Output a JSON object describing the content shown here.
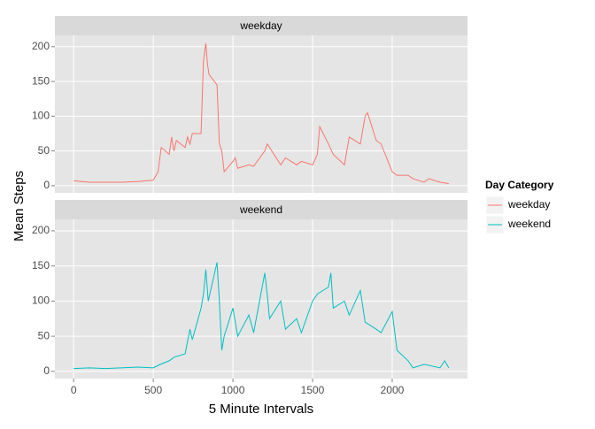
{
  "chart_data": {
    "type": "line",
    "x_label": "5 Minute Intervals",
    "y_label": "Mean Steps",
    "legend_title": "Day Category",
    "legend_position": "right",
    "facet": true,
    "grid": true,
    "xlim": [
      -117.75,
      2472.75
    ],
    "xticks": [
      0,
      500,
      1000,
      1500,
      2000
    ],
    "ylim": [
      -10.3,
      216.3
    ],
    "yticks": [
      0,
      50,
      100,
      150,
      200
    ],
    "series": [
      {
        "name": "weekday",
        "color": "#F8766D",
        "x": [
          0,
          100,
          200,
          300,
          400,
          500,
          530,
          550,
          600,
          615,
          630,
          645,
          700,
          715,
          730,
          745,
          800,
          815,
          830,
          840,
          850,
          900,
          915,
          930,
          945,
          1000,
          1015,
          1030,
          1100,
          1130,
          1200,
          1215,
          1230,
          1300,
          1330,
          1400,
          1430,
          1500,
          1530,
          1545,
          1600,
          1630,
          1700,
          1730,
          1800,
          1830,
          1845,
          1900,
          1930,
          2000,
          2030,
          2100,
          2130,
          2200,
          2230,
          2300,
          2355
        ],
        "values": [
          7,
          5,
          5,
          5,
          6,
          8,
          20,
          55,
          45,
          70,
          50,
          65,
          55,
          70,
          60,
          75,
          75,
          180,
          205,
          175,
          160,
          145,
          60,
          50,
          20,
          35,
          40,
          25,
          30,
          28,
          50,
          60,
          55,
          30,
          40,
          30,
          35,
          30,
          45,
          85,
          60,
          45,
          30,
          70,
          60,
          100,
          105,
          65,
          60,
          20,
          15,
          15,
          10,
          5,
          10,
          5,
          3
        ]
      },
      {
        "name": "weekend",
        "color": "#00BFC4",
        "x": [
          0,
          100,
          200,
          300,
          400,
          500,
          545,
          600,
          630,
          700,
          730,
          745,
          800,
          815,
          830,
          845,
          900,
          915,
          930,
          945,
          1000,
          1030,
          1100,
          1130,
          1200,
          1215,
          1230,
          1300,
          1330,
          1400,
          1430,
          1500,
          1530,
          1600,
          1615,
          1630,
          1700,
          1730,
          1800,
          1830,
          1900,
          1930,
          2000,
          2030,
          2100,
          2130,
          2200,
          2300,
          2330,
          2355
        ],
        "values": [
          4,
          5,
          4,
          5,
          6,
          5,
          10,
          15,
          20,
          25,
          60,
          45,
          90,
          110,
          145,
          100,
          155,
          100,
          30,
          50,
          90,
          50,
          80,
          55,
          140,
          110,
          75,
          100,
          60,
          75,
          55,
          100,
          110,
          120,
          140,
          90,
          100,
          80,
          115,
          70,
          60,
          55,
          85,
          30,
          15,
          5,
          10,
          5,
          15,
          5
        ]
      }
    ]
  }
}
